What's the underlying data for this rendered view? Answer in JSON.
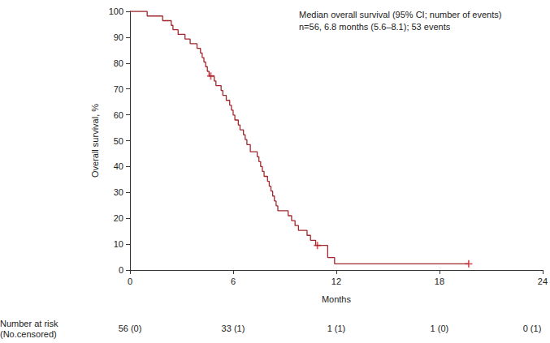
{
  "chart_data": {
    "type": "line",
    "line_style": "step",
    "xlabel": "Months",
    "ylabel": "Overall survival, %",
    "annotation": [
      "Median overall survival (95% CI; number of events)",
      "n=56, 6.8 months (5.6–8.1); 53 events"
    ],
    "xlim": [
      0,
      24
    ],
    "xticks": [
      0,
      6,
      12,
      18,
      24
    ],
    "ylim": [
      0,
      100
    ],
    "yticks": [
      0,
      10,
      20,
      30,
      40,
      50,
      60,
      70,
      80,
      90,
      100
    ],
    "grid": false,
    "color": "#a0282d",
    "x": [
      0,
      1.0,
      1.9,
      2.4,
      2.5,
      2.8,
      3.2,
      3.5,
      3.9,
      4.1,
      4.2,
      4.3,
      4.4,
      4.5,
      4.6,
      4.9,
      5.0,
      5.3,
      5.4,
      5.6,
      5.8,
      5.9,
      6.0,
      6.1,
      6.3,
      6.4,
      6.6,
      6.7,
      6.8,
      7.0,
      7.4,
      7.5,
      7.6,
      7.7,
      7.8,
      8.0,
      8.1,
      8.2,
      8.3,
      8.4,
      8.5,
      8.6,
      9.2,
      9.4,
      9.6,
      9.8,
      10.3,
      10.5,
      10.8,
      11.5,
      11.9,
      19.7
    ],
    "values": [
      100,
      98.2,
      96.4,
      94.6,
      92.9,
      91.1,
      89.3,
      87.5,
      85.7,
      83.9,
      82.1,
      80.4,
      78.6,
      76.8,
      75.0,
      73.1,
      71.3,
      69.4,
      67.5,
      65.6,
      63.7,
      61.8,
      59.9,
      58.0,
      56.1,
      54.2,
      52.3,
      50.4,
      48.5,
      45.7,
      43.8,
      41.9,
      40.0,
      38.1,
      36.2,
      34.3,
      32.4,
      30.5,
      28.6,
      26.7,
      24.8,
      22.9,
      21.0,
      19.1,
      17.2,
      15.3,
      13.4,
      11.5,
      9.5,
      4.8,
      2.4,
      2.4
    ],
    "censored": {
      "x": [
        4.7,
        10.9,
        19.7
      ],
      "values": [
        75.0,
        9.5,
        2.4
      ],
      "marker": "plus",
      "color": "#d0303a"
    },
    "risk_table": {
      "title": [
        "Number at risk",
        "(No.censored)"
      ],
      "x": [
        0,
        6,
        12,
        18,
        24
      ],
      "labels": [
        "56 (0)",
        "33 (1)",
        "1 (1)",
        "1 (0)",
        "0 (1)"
      ]
    }
  }
}
